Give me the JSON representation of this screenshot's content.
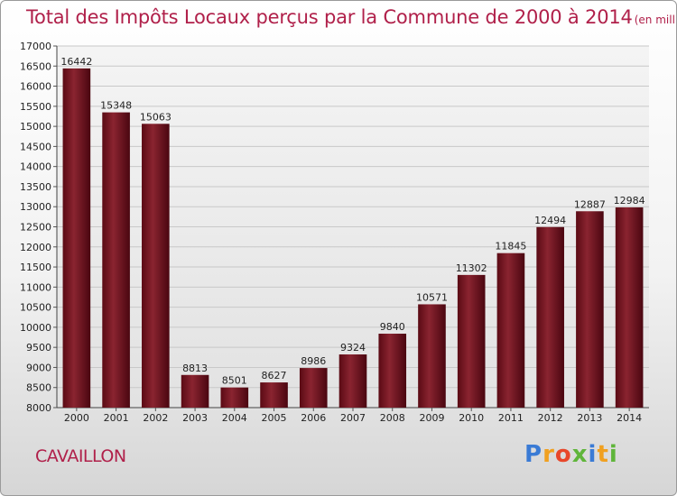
{
  "chart_data": {
    "type": "bar",
    "title": "Total des Impôts Locaux perçus par la Commune de 2000 à 2014",
    "unit_label": "(en milliers d'€)",
    "categories": [
      "2000",
      "2001",
      "2002",
      "2003",
      "2004",
      "2005",
      "2006",
      "2007",
      "2008",
      "2009",
      "2010",
      "2011",
      "2012",
      "2013",
      "2014"
    ],
    "values": [
      16442,
      15348,
      15063,
      8813,
      8501,
      8627,
      8986,
      9324,
      9840,
      10571,
      11302,
      11845,
      12494,
      12887,
      12984
    ],
    "ylim": [
      8000,
      17000
    ],
    "yticks": [
      8000,
      8500,
      9000,
      9500,
      10000,
      10500,
      11000,
      11500,
      12000,
      12500,
      13000,
      13500,
      14000,
      14500,
      15000,
      15500,
      16000,
      16500,
      17000
    ],
    "grid": true,
    "bar_color": "#7a1420"
  },
  "footer": {
    "city": "CAVAILLON",
    "logo_letters": [
      "P",
      "r",
      "o",
      "x",
      "i",
      "t",
      "i"
    ]
  }
}
